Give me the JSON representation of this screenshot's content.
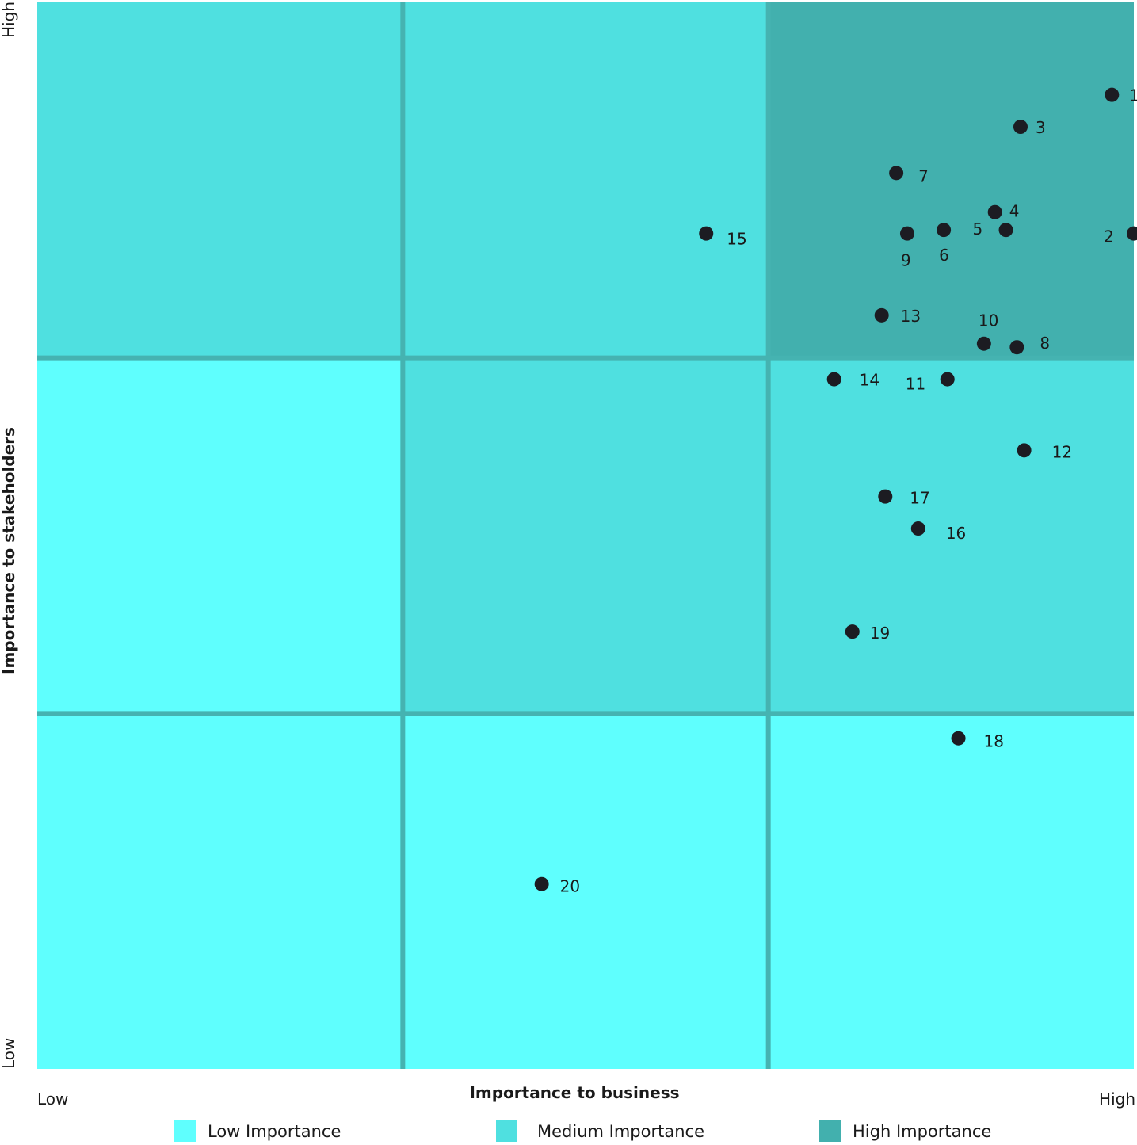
{
  "chart_data": {
    "type": "scatter",
    "title": "",
    "xlabel": "Importance to business",
    "ylabel": "Importance to stakeholders",
    "x_ticks": {
      "low": "Low",
      "high": "High"
    },
    "y_ticks": {
      "low": "Low",
      "high": "High"
    },
    "xlim": [
      0,
      3
    ],
    "ylim": [
      0,
      3
    ],
    "grid": "3x3 zones",
    "zones": [
      [
        "low",
        "low",
        "low"
      ],
      [
        "low",
        "medium",
        "medium"
      ],
      [
        "medium",
        "medium",
        "high"
      ]
    ],
    "colors": {
      "low": "#5ffffe",
      "medium": "#4fe0e0",
      "high": "#42b0ae",
      "grid_line": "#45b3b1",
      "point": "#1c1c22"
    },
    "points": [
      {
        "label": "1",
        "x": 2.94,
        "y": 2.74
      },
      {
        "label": "2",
        "x": 3.0,
        "y": 2.35
      },
      {
        "label": "3",
        "x": 2.69,
        "y": 2.65
      },
      {
        "label": "4",
        "x": 2.62,
        "y": 2.41
      },
      {
        "label": "5",
        "x": 2.65,
        "y": 2.36
      },
      {
        "label": "6",
        "x": 2.48,
        "y": 2.36
      },
      {
        "label": "7",
        "x": 2.35,
        "y": 2.52
      },
      {
        "label": "8",
        "x": 2.68,
        "y": 2.03
      },
      {
        "label": "9",
        "x": 2.38,
        "y": 2.35
      },
      {
        "label": "10",
        "x": 2.59,
        "y": 2.04
      },
      {
        "label": "11",
        "x": 2.49,
        "y": 1.94
      },
      {
        "label": "12",
        "x": 2.7,
        "y": 1.74
      },
      {
        "label": "13",
        "x": 2.31,
        "y": 2.12
      },
      {
        "label": "14",
        "x": 2.18,
        "y": 1.94
      },
      {
        "label": "15",
        "x": 1.83,
        "y": 2.35
      },
      {
        "label": "16",
        "x": 2.41,
        "y": 1.52
      },
      {
        "label": "17",
        "x": 2.32,
        "y": 1.61
      },
      {
        "label": "18",
        "x": 2.52,
        "y": 0.93
      },
      {
        "label": "19",
        "x": 2.23,
        "y": 1.23
      },
      {
        "label": "20",
        "x": 1.38,
        "y": 0.52
      }
    ],
    "legend": {
      "placement": "bottom",
      "items": [
        {
          "name": "Low Importance",
          "key": "low"
        },
        {
          "name": "Medium Importance",
          "key": "medium"
        },
        {
          "name": "High Importance",
          "key": "high"
        }
      ]
    }
  }
}
